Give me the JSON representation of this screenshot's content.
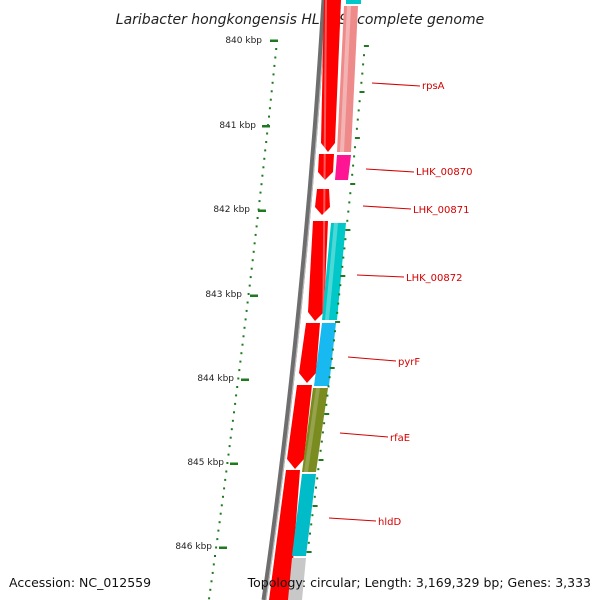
{
  "title": "Laribacter hongkongensis HLHK9, complete genome",
  "accession": "Accession: NC_012559",
  "topology": "Topology: circular; Length: 3,169,329 bp; Genes: 3,333",
  "kbp_labels": [
    "840 kbp",
    "841 kbp",
    "842 kbp",
    "843 kbp",
    "844 kbp",
    "845 kbp",
    "846 kbp"
  ],
  "gene_labels": [
    "rpsA",
    "LHK_00870",
    "LHK_00871",
    "LHK_00872",
    "pyrF",
    "rfaE",
    "hldD"
  ],
  "colors": {
    "backbone": "#6e6e6e",
    "scale_ticks": "#1f7a1f",
    "cds": "#ff0000",
    "label_text": "#d40000",
    "cog_rpsA": "#ef8a8a",
    "cog_LHK_00870": "#ff1493",
    "cog_LHK_00872": "#00c8c8",
    "cog_pyrF": "#18b8f0",
    "cog_rfaE": "#7a8c20",
    "cog_hldD": "#00bcc8"
  }
}
